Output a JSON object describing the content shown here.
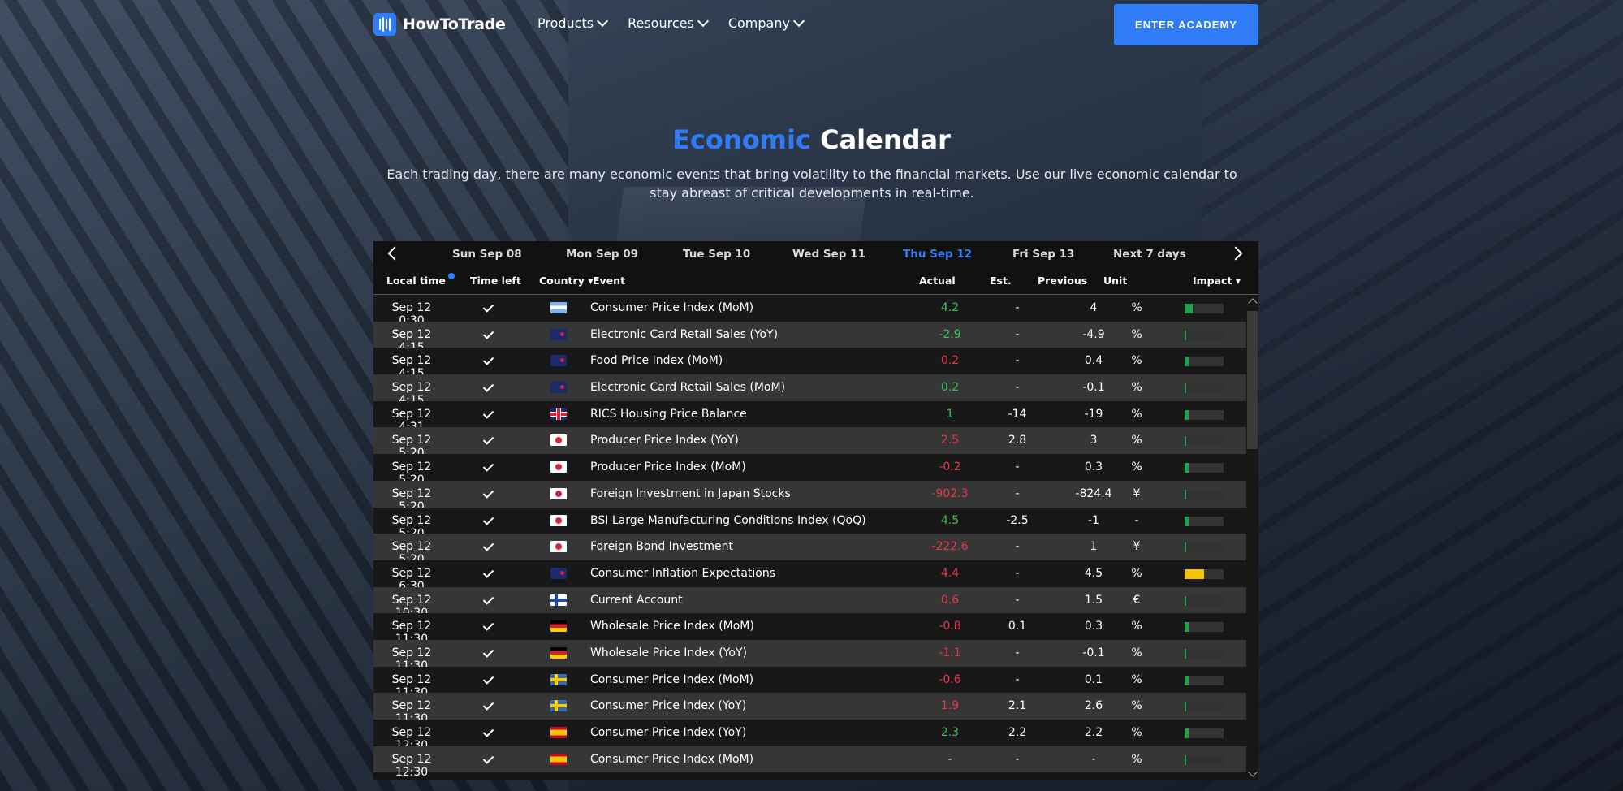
{
  "brand": {
    "name": "HowToTrade"
  },
  "nav": {
    "items": [
      "Products",
      "Resources",
      "Company"
    ],
    "cta": "ENTER ACADEMY"
  },
  "hero": {
    "title_blue": "Economic",
    "title_white": "Calendar",
    "subtitle": "Each trading day, there are many economic events that bring volatility to the financial markets. Use our live economic calendar to stay abreast of critical developments in real-time."
  },
  "days": [
    "Sun Sep 08",
    "Mon Sep 09",
    "Tue Sep 10",
    "Wed Sep 11",
    "Thu Sep 12",
    "Fri Sep 13",
    "Next 7 days"
  ],
  "active_day": "Thu Sep 12",
  "columns": {
    "local_time": "Local time",
    "time_left": "Time left",
    "country": "Country",
    "event": "Event",
    "actual": "Actual",
    "est": "Est.",
    "previous": "Previous",
    "unit": "Unit",
    "impact": "Impact"
  },
  "colors": {
    "accent": "#2f7cf6",
    "positive": "#3ac35a",
    "negative": "#e8364b",
    "impact_high": "#f5c400"
  },
  "rows": [
    {
      "time": "Sep 12 0:30",
      "flag": "ar",
      "event": "Consumer Price Index (MoM)",
      "actual": "4.2",
      "actual_tone": "pos",
      "est": "-",
      "prev": "4",
      "unit": "%",
      "impact": 0.2
    },
    {
      "time": "Sep 12 4:15",
      "flag": "nz",
      "event": "Electronic Card Retail Sales (YoY)",
      "actual": "-2.9",
      "actual_tone": "pos",
      "est": "-",
      "prev": "-4.9",
      "unit": "%",
      "impact": 0.05
    },
    {
      "time": "Sep 12 4:15",
      "flag": "nz",
      "event": "Food Price Index (MoM)",
      "actual": "0.2",
      "actual_tone": "neg",
      "est": "-",
      "prev": "0.4",
      "unit": "%",
      "impact": 0.1
    },
    {
      "time": "Sep 12 4:15",
      "flag": "nz",
      "event": "Electronic Card Retail Sales (MoM)",
      "actual": "0.2",
      "actual_tone": "pos",
      "est": "-",
      "prev": "-0.1",
      "unit": "%",
      "impact": 0.05
    },
    {
      "time": "Sep 12 4:31",
      "flag": "gb",
      "event": "RICS Housing Price Balance",
      "actual": "1",
      "actual_tone": "pos",
      "est": "-14",
      "prev": "-19",
      "unit": "%",
      "impact": 0.1
    },
    {
      "time": "Sep 12 5:20",
      "flag": "jp",
      "event": "Producer Price Index (YoY)",
      "actual": "2.5",
      "actual_tone": "neg",
      "est": "2.8",
      "prev": "3",
      "unit": "%",
      "impact": 0.05
    },
    {
      "time": "Sep 12 5:20",
      "flag": "jp",
      "event": "Producer Price Index (MoM)",
      "actual": "-0.2",
      "actual_tone": "neg",
      "est": "-",
      "prev": "0.3",
      "unit": "%",
      "impact": 0.1
    },
    {
      "time": "Sep 12 5:20",
      "flag": "jp",
      "event": "Foreign Investment in Japan Stocks",
      "actual": "-902.3",
      "actual_tone": "neg",
      "est": "-",
      "prev": "-824.4",
      "unit": "¥",
      "impact": 0.05
    },
    {
      "time": "Sep 12 5:20",
      "flag": "jp",
      "event": "BSI Large Manufacturing Conditions Index (QoQ)",
      "actual": "4.5",
      "actual_tone": "pos",
      "est": "-2.5",
      "prev": "-1",
      "unit": "-",
      "impact": 0.1
    },
    {
      "time": "Sep 12 5:20",
      "flag": "jp",
      "event": "Foreign Bond Investment",
      "actual": "-222.6",
      "actual_tone": "neg",
      "est": "-",
      "prev": "1",
      "unit": "¥",
      "impact": 0.05
    },
    {
      "time": "Sep 12 6:30",
      "flag": "nz",
      "event": "Consumer Inflation Expectations",
      "actual": "4.4",
      "actual_tone": "neg",
      "est": "-",
      "prev": "4.5",
      "unit": "%",
      "impact": 0.5,
      "impact_color": "#f5c400"
    },
    {
      "time": "Sep 12 10:30",
      "flag": "fi",
      "event": "Current Account",
      "actual": "0.6",
      "actual_tone": "neg",
      "est": "-",
      "prev": "1.5",
      "unit": "€",
      "impact": 0.05
    },
    {
      "time": "Sep 12 11:30",
      "flag": "de",
      "event": "Wholesale Price Index (MoM)",
      "actual": "-0.8",
      "actual_tone": "neg",
      "est": "0.1",
      "prev": "0.3",
      "unit": "%",
      "impact": 0.1
    },
    {
      "time": "Sep 12 11:30",
      "flag": "de",
      "event": "Wholesale Price Index (YoY)",
      "actual": "-1.1",
      "actual_tone": "neg",
      "est": "-",
      "prev": "-0.1",
      "unit": "%",
      "impact": 0.05
    },
    {
      "time": "Sep 12 11:30",
      "flag": "se",
      "event": "Consumer Price Index (MoM)",
      "actual": "-0.6",
      "actual_tone": "neg",
      "est": "-",
      "prev": "0.1",
      "unit": "%",
      "impact": 0.1
    },
    {
      "time": "Sep 12 11:30",
      "flag": "se",
      "event": "Consumer Price Index (YoY)",
      "actual": "1.9",
      "actual_tone": "neg",
      "est": "2.1",
      "prev": "2.6",
      "unit": "%",
      "impact": 0.05
    },
    {
      "time": "Sep 12 12:30",
      "flag": "es",
      "event": "Consumer Price Index (YoY)",
      "actual": "2.3",
      "actual_tone": "pos",
      "est": "2.2",
      "prev": "2.2",
      "unit": "%",
      "impact": 0.1
    },
    {
      "time": "Sep 12 12:30",
      "flag": "es",
      "event": "Consumer Price Index (MoM)",
      "actual": "-",
      "actual_tone": "none",
      "est": "-",
      "prev": "-",
      "unit": "%",
      "impact": 0.05
    }
  ]
}
